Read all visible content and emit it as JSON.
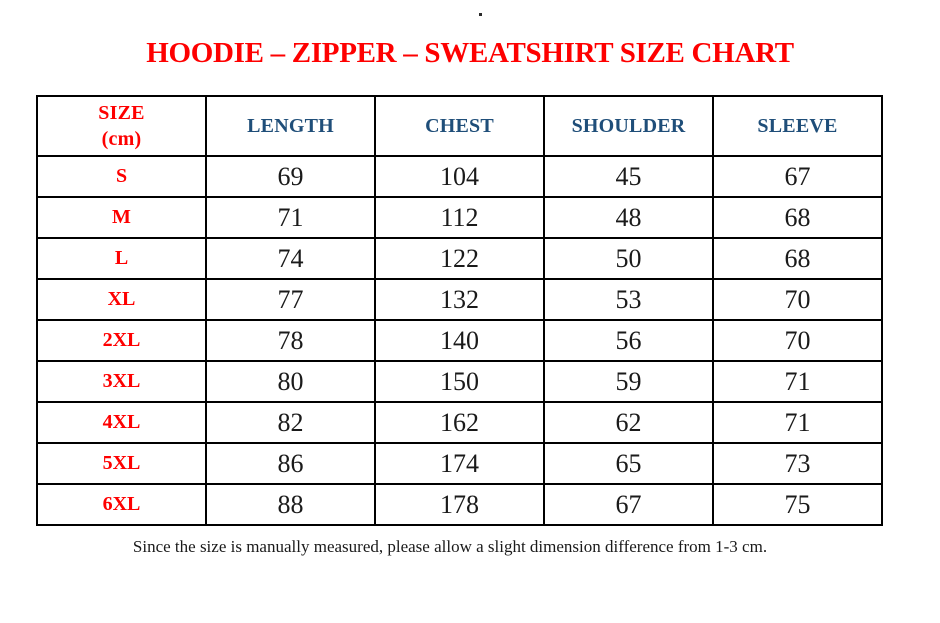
{
  "page": {
    "title": "HOODIE – ZIPPER – SWEATSHIRT SIZE CHART",
    "footnote": "Since the size is manually measured, please allow a slight dimension difference from 1-3 cm."
  },
  "colors": {
    "title_red": "#fe0000",
    "size_label_red": "#fe0000",
    "header_blue": "#1f4e79",
    "value_black": "#1a1a1a",
    "border_black": "#000000"
  },
  "table": {
    "header": {
      "size_line1": "SIZE",
      "size_line2": "(cm)",
      "columns": [
        "LENGTH",
        "CHEST",
        "SHOULDER",
        "SLEEVE"
      ]
    },
    "rows": [
      {
        "size": "S",
        "length": "69",
        "chest": "104",
        "shoulder": "45",
        "sleeve": "67"
      },
      {
        "size": "M",
        "length": "71",
        "chest": "112",
        "shoulder": "48",
        "sleeve": "68"
      },
      {
        "size": "L",
        "length": "74",
        "chest": "122",
        "shoulder": "50",
        "sleeve": "68"
      },
      {
        "size": "XL",
        "length": "77",
        "chest": "132",
        "shoulder": "53",
        "sleeve": "70"
      },
      {
        "size": "2XL",
        "length": "78",
        "chest": "140",
        "shoulder": "56",
        "sleeve": "70"
      },
      {
        "size": "3XL",
        "length": "80",
        "chest": "150",
        "shoulder": "59",
        "sleeve": "71"
      },
      {
        "size": "4XL",
        "length": "82",
        "chest": "162",
        "shoulder": "62",
        "sleeve": "71"
      },
      {
        "size": "5XL",
        "length": "86",
        "chest": "174",
        "shoulder": "65",
        "sleeve": "73"
      },
      {
        "size": "6XL",
        "length": "88",
        "chest": "178",
        "shoulder": "67",
        "sleeve": "75"
      }
    ]
  },
  "chart_data": {
    "type": "table",
    "title": "HOODIE – ZIPPER – SWEATSHIRT SIZE CHART",
    "columns": [
      "SIZE (cm)",
      "LENGTH",
      "CHEST",
      "SHOULDER",
      "SLEEVE"
    ],
    "rows": [
      [
        "S",
        69,
        104,
        45,
        67
      ],
      [
        "M",
        71,
        112,
        48,
        68
      ],
      [
        "L",
        74,
        122,
        50,
        68
      ],
      [
        "XL",
        77,
        132,
        53,
        70
      ],
      [
        "2XL",
        78,
        140,
        56,
        70
      ],
      [
        "3XL",
        80,
        150,
        59,
        71
      ],
      [
        "4XL",
        82,
        162,
        62,
        71
      ],
      [
        "5XL",
        86,
        174,
        65,
        73
      ],
      [
        "6XL",
        88,
        178,
        67,
        75
      ]
    ],
    "footnote": "Since the size is manually measured, please allow a slight dimension difference from 1-3 cm."
  }
}
